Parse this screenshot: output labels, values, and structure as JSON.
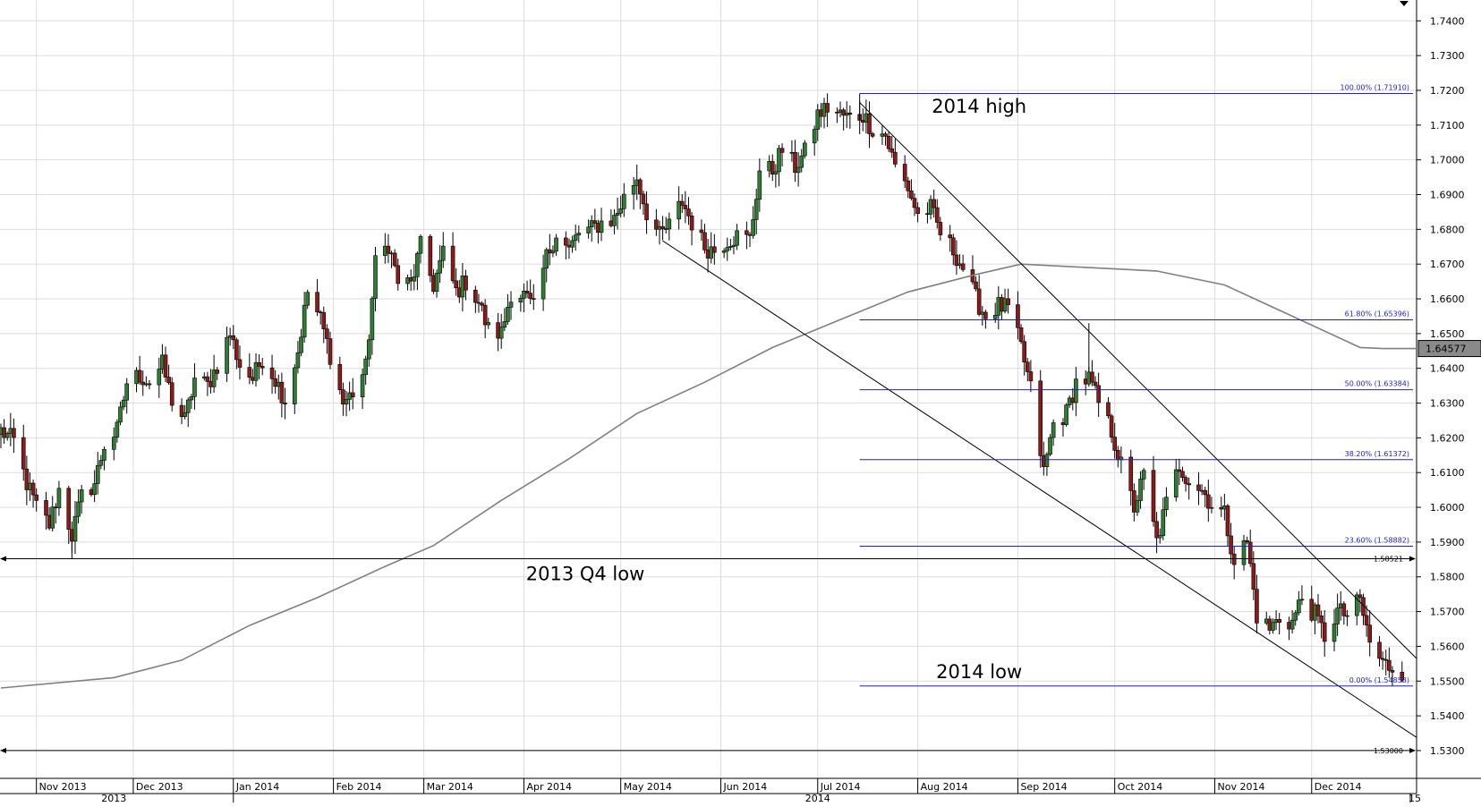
{
  "chart_data": {
    "type": "candlestick",
    "instrument_scale": "price",
    "ylim": [
      1.522,
      1.746
    ],
    "yticks": [
      "1.7400",
      "1.7300",
      "1.7200",
      "1.7100",
      "1.7000",
      "1.6900",
      "1.6800",
      "1.6700",
      "1.6600",
      "1.6500",
      "1.6400",
      "1.6300",
      "1.6200",
      "1.6100",
      "1.6000",
      "1.5900",
      "1.5800",
      "1.5700",
      "1.5600",
      "1.5500",
      "1.5400",
      "1.5300"
    ],
    "x_start": "2013-10-21",
    "x_end": "2014-12-31",
    "month_labels": [
      {
        "label": "Nov 2013",
        "date": "2013-11-01"
      },
      {
        "label": "Dec 2013",
        "date": "2013-12-01"
      },
      {
        "label": "Jan 2014",
        "date": "2014-01-01"
      },
      {
        "label": "Feb 2014",
        "date": "2014-02-01"
      },
      {
        "label": "Mar 2014",
        "date": "2014-03-01"
      },
      {
        "label": "Apr 2014",
        "date": "2014-04-01"
      },
      {
        "label": "May 2014",
        "date": "2014-05-01"
      },
      {
        "label": "Jun 2014",
        "date": "2014-06-01"
      },
      {
        "label": "Jul 2014",
        "date": "2014-07-01"
      },
      {
        "label": "Aug 2014",
        "date": "2014-08-01"
      },
      {
        "label": "Sep 2014",
        "date": "2014-09-01"
      },
      {
        "label": "Oct 2014",
        "date": "2014-10-01"
      },
      {
        "label": "Nov 2014",
        "date": "2014-11-01"
      },
      {
        "label": "Dec 2014",
        "date": "2014-12-01"
      }
    ],
    "year_labels": [
      {
        "label": "2013",
        "date": "2013-11-25"
      },
      {
        "label": "2014",
        "date": "2014-07-01"
      },
      {
        "label": "15",
        "date": "2014-12-31"
      }
    ],
    "close_path": [
      [
        "2013-10-21",
        1.622
      ],
      [
        "2013-10-25",
        1.619
      ],
      [
        "2013-10-29",
        1.607
      ],
      [
        "2013-11-01",
        1.6
      ],
      [
        "2013-11-05",
        1.595
      ],
      [
        "2013-11-08",
        1.605
      ],
      [
        "2013-11-12",
        1.592
      ],
      [
        "2013-11-15",
        1.603
      ],
      [
        "2013-11-19",
        1.607
      ],
      [
        "2013-11-22",
        1.618
      ],
      [
        "2013-11-26",
        1.622
      ],
      [
        "2013-11-29",
        1.636
      ],
      [
        "2013-12-03",
        1.638
      ],
      [
        "2013-12-06",
        1.636
      ],
      [
        "2013-12-10",
        1.641
      ],
      [
        "2013-12-13",
        1.631
      ],
      [
        "2013-12-17",
        1.625
      ],
      [
        "2013-12-20",
        1.637
      ],
      [
        "2013-12-24",
        1.635
      ],
      [
        "2013-12-27",
        1.641
      ],
      [
        "2013-12-31",
        1.65
      ],
      [
        "2014-01-03",
        1.641
      ],
      [
        "2014-01-07",
        1.637
      ],
      [
        "2014-01-10",
        1.643
      ],
      [
        "2014-01-14",
        1.637
      ],
      [
        "2014-01-17",
        1.631
      ],
      [
        "2014-01-21",
        1.645
      ],
      [
        "2014-01-24",
        1.662
      ],
      [
        "2014-01-28",
        1.654
      ],
      [
        "2014-01-31",
        1.644
      ],
      [
        "2014-02-04",
        1.63
      ],
      [
        "2014-02-07",
        1.633
      ],
      [
        "2014-02-11",
        1.64
      ],
      [
        "2014-02-14",
        1.67
      ],
      [
        "2014-02-18",
        1.676
      ],
      [
        "2014-02-21",
        1.665
      ],
      [
        "2014-02-25",
        1.664
      ],
      [
        "2014-02-28",
        1.675
      ],
      [
        "2014-03-04",
        1.664
      ],
      [
        "2014-03-07",
        1.673
      ],
      [
        "2014-03-11",
        1.662
      ],
      [
        "2014-03-14",
        1.665
      ],
      [
        "2014-03-18",
        1.659
      ],
      [
        "2014-03-21",
        1.651
      ],
      [
        "2014-03-25",
        1.65
      ],
      [
        "2014-03-28",
        1.662
      ],
      [
        "2014-04-01",
        1.661
      ],
      [
        "2014-04-04",
        1.657
      ],
      [
        "2014-04-08",
        1.672
      ],
      [
        "2014-04-11",
        1.679
      ],
      [
        "2014-04-15",
        1.674
      ],
      [
        "2014-04-18",
        1.679
      ],
      [
        "2014-04-22",
        1.68
      ],
      [
        "2014-04-25",
        1.682
      ],
      [
        "2014-04-29",
        1.683
      ],
      [
        "2014-05-02",
        1.689
      ],
      [
        "2014-05-06",
        1.695
      ],
      [
        "2014-05-09",
        1.685
      ],
      [
        "2014-05-13",
        1.678
      ],
      [
        "2014-05-16",
        1.681
      ],
      [
        "2014-05-20",
        1.688
      ],
      [
        "2014-05-23",
        1.682
      ],
      [
        "2014-05-27",
        1.675
      ],
      [
        "2014-05-30",
        1.674
      ],
      [
        "2014-06-03",
        1.677
      ],
      [
        "2014-06-06",
        1.678
      ],
      [
        "2014-06-10",
        1.677
      ],
      [
        "2014-06-13",
        1.697
      ],
      [
        "2014-06-17",
        1.697
      ],
      [
        "2014-06-20",
        1.703
      ],
      [
        "2014-06-24",
        1.698
      ],
      [
        "2014-06-27",
        1.702
      ],
      [
        "2014-07-01",
        1.713
      ],
      [
        "2014-07-04",
        1.715
      ],
      [
        "2014-07-08",
        1.713
      ],
      [
        "2014-07-11",
        1.712
      ],
      [
        "2014-07-15",
        1.713
      ],
      [
        "2014-07-18",
        1.709
      ],
      [
        "2014-07-22",
        1.707
      ],
      [
        "2014-07-25",
        1.698
      ],
      [
        "2014-07-29",
        1.692
      ],
      [
        "2014-08-01",
        1.684
      ],
      [
        "2014-08-05",
        1.686
      ],
      [
        "2014-08-08",
        1.679
      ],
      [
        "2014-08-12",
        1.674
      ],
      [
        "2014-08-15",
        1.669
      ],
      [
        "2014-08-19",
        1.66
      ],
      [
        "2014-08-22",
        1.655
      ],
      [
        "2014-08-26",
        1.658
      ],
      [
        "2014-08-29",
        1.657
      ],
      [
        "2014-09-02",
        1.646
      ],
      [
        "2014-09-05",
        1.634
      ],
      [
        "2014-09-09",
        1.61
      ],
      [
        "2014-09-12",
        1.624
      ],
      [
        "2014-09-16",
        1.627
      ],
      [
        "2014-09-19",
        1.636
      ],
      [
        "2014-09-23",
        1.637
      ],
      [
        "2014-09-26",
        1.63
      ],
      [
        "2014-09-30",
        1.622
      ],
      [
        "2014-10-03",
        1.612
      ],
      [
        "2014-10-07",
        1.6
      ],
      [
        "2014-10-10",
        1.609
      ],
      [
        "2014-10-14",
        1.59
      ],
      [
        "2014-10-17",
        1.601
      ],
      [
        "2014-10-21",
        1.612
      ],
      [
        "2014-10-24",
        1.608
      ],
      [
        "2014-10-28",
        1.605
      ],
      [
        "2014-10-31",
        1.601
      ],
      [
        "2014-11-04",
        1.598
      ],
      [
        "2014-11-07",
        1.585
      ],
      [
        "2014-11-11",
        1.59
      ],
      [
        "2014-11-14",
        1.569
      ],
      [
        "2014-11-18",
        1.565
      ],
      [
        "2014-11-21",
        1.568
      ],
      [
        "2014-11-25",
        1.567
      ],
      [
        "2014-11-28",
        1.574
      ],
      [
        "2014-12-02",
        1.569
      ],
      [
        "2014-12-05",
        1.563
      ],
      [
        "2014-12-09",
        1.57
      ],
      [
        "2014-12-12",
        1.569
      ],
      [
        "2014-12-16",
        1.573
      ],
      [
        "2014-12-19",
        1.561
      ],
      [
        "2014-12-23",
        1.555
      ],
      [
        "2014-12-26",
        1.554
      ],
      [
        "2014-12-29",
        1.553
      ]
    ],
    "candle_extremes": [
      {
        "date": "2013-11-12",
        "low": 1.5852
      },
      {
        "date": "2014-07-14",
        "high": 1.7191
      },
      {
        "date": "2014-09-23",
        "high": 1.653
      },
      {
        "date": "2014-12-26",
        "low": 1.5486
      }
    ],
    "moving_average": [
      [
        "2013-10-21",
        1.548
      ],
      [
        "2013-11-25",
        1.551
      ],
      [
        "2013-12-16",
        1.556
      ],
      [
        "2014-01-06",
        1.566
      ],
      [
        "2014-01-27",
        1.574
      ],
      [
        "2014-02-17",
        1.583
      ],
      [
        "2014-03-04",
        1.589
      ],
      [
        "2014-03-25",
        1.602
      ],
      [
        "2014-04-15",
        1.614
      ],
      [
        "2014-05-06",
        1.627
      ],
      [
        "2014-05-27",
        1.636
      ],
      [
        "2014-06-17",
        1.646
      ],
      [
        "2014-07-08",
        1.654
      ],
      [
        "2014-07-29",
        1.662
      ],
      [
        "2014-08-19",
        1.667
      ],
      [
        "2014-09-02",
        1.67
      ],
      [
        "2014-09-23",
        1.669
      ],
      [
        "2014-10-14",
        1.668
      ],
      [
        "2014-11-04",
        1.664
      ],
      [
        "2014-11-25",
        1.655
      ],
      [
        "2014-12-16",
        1.646
      ],
      [
        "2014-12-23",
        1.6457
      ]
    ],
    "trendlines": [
      {
        "from": [
          "2014-07-14",
          1.7165
        ],
        "to": [
          "2014-12-31",
          1.5565
        ]
      },
      {
        "from": [
          "2014-05-14",
          1.6767
        ],
        "to": [
          "2014-12-31",
          1.5338
        ]
      }
    ],
    "fibonacci": {
      "start_date": "2014-07-14",
      "levels": [
        {
          "label": "100.00% (1.71910)",
          "value": 1.7191
        },
        {
          "label": "61.80% (1.65396)",
          "value": 1.65396
        },
        {
          "label": "50.00% (1.63384)",
          "value": 1.63384
        },
        {
          "label": "38.20% (1.61372)",
          "value": 1.61372
        },
        {
          "label": "23.60% (1.58882)",
          "value": 1.58882
        },
        {
          "label": "0.00% (1.54858)",
          "value": 1.54858
        }
      ]
    },
    "horizontal_levels": [
      {
        "label": "1.58521",
        "value": 1.58521
      },
      {
        "label": "1.53000",
        "value": 1.53
      }
    ],
    "annotations": [
      {
        "text": "2014 high",
        "date": "2014-08-20",
        "value": 1.7135
      },
      {
        "text": "2013 Q4 low",
        "date": "2014-04-20",
        "value": 1.579
      },
      {
        "text": "2014 low",
        "date": "2014-08-20",
        "value": 1.5508
      }
    ],
    "last_price": "1.64577",
    "last_price_value": 1.6457,
    "grid": true,
    "colors": {
      "up_candle": "#2e7d32",
      "down_candle": "#8b1a1a",
      "fib_line": "#1f1fd1",
      "moving_average": "#808080",
      "grid": "#dddddd",
      "tag_fill": "#8a8a8a"
    }
  }
}
